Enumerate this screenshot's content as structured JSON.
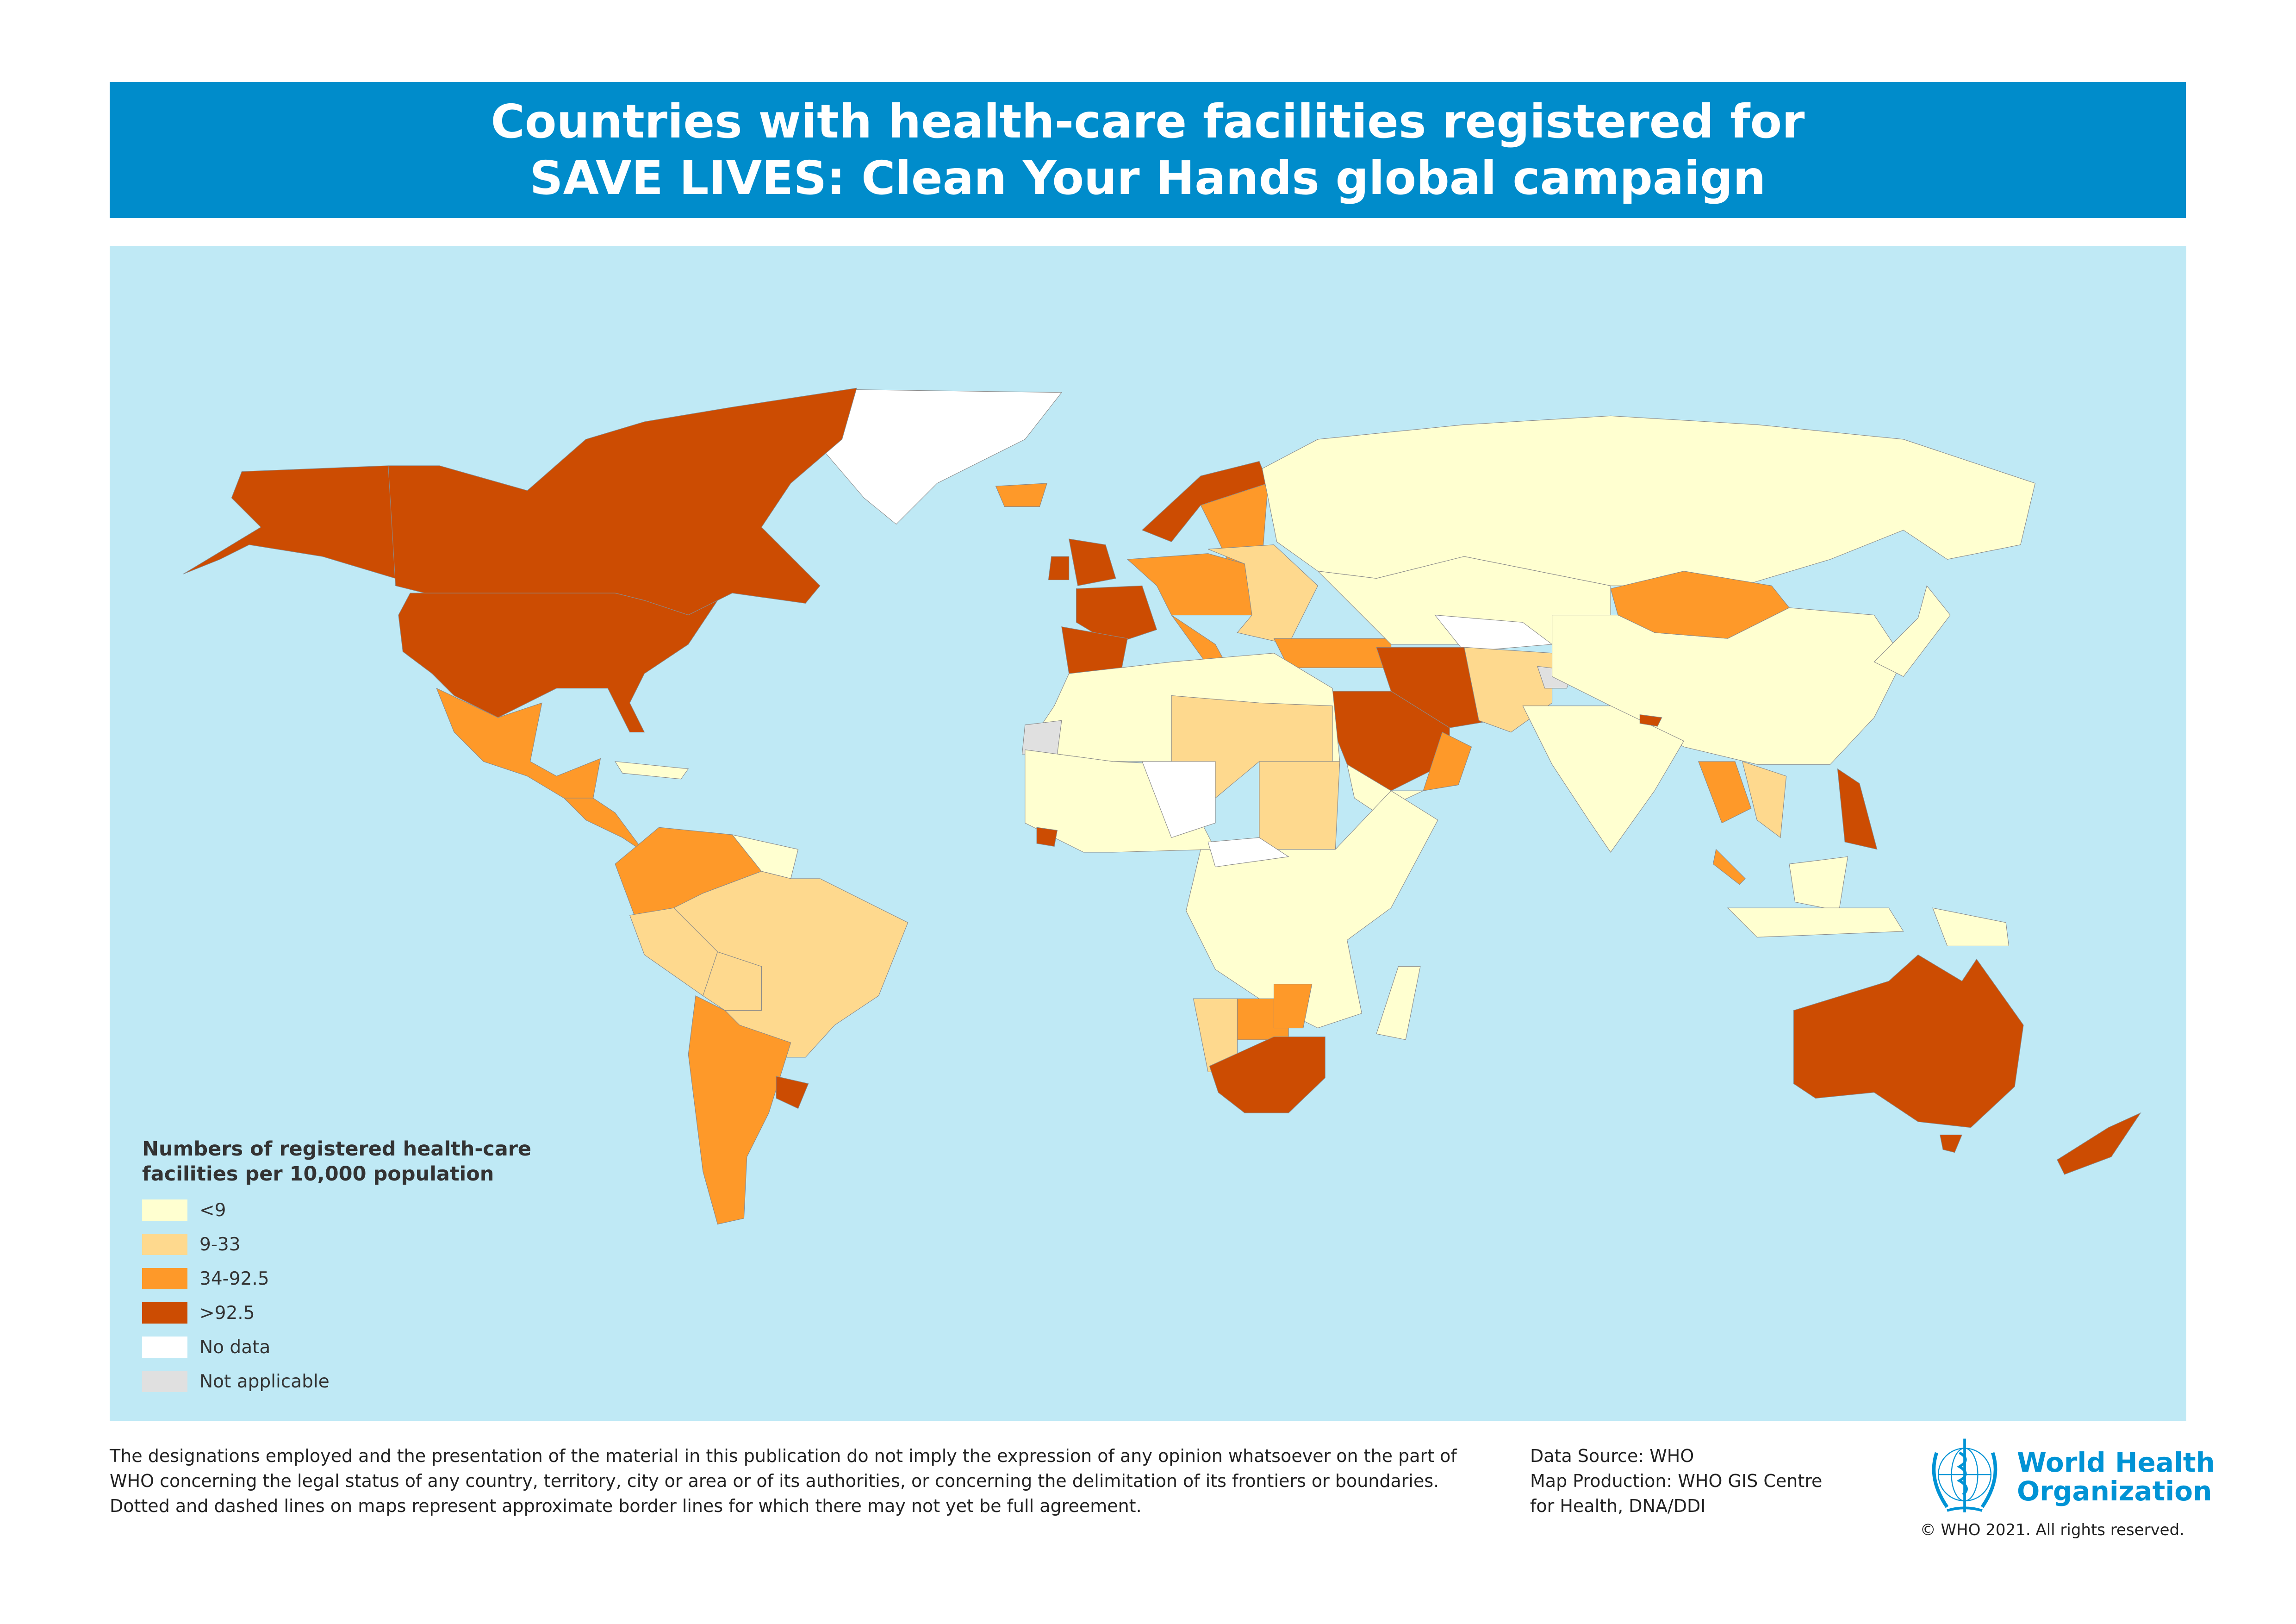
{
  "title": {
    "line1": "Countries with health-care facilities registered for",
    "line2": "SAVE LIVES: Clean Your Hands global campaign"
  },
  "legend": {
    "title_line1": "Numbers of registered health-care",
    "title_line2": "facilities per 10,000 population",
    "items": [
      {
        "label": "<9",
        "color": "#FFFFD0"
      },
      {
        "label": "9-33",
        "color": "#FED98E"
      },
      {
        "label": "34-92.5",
        "color": "#FE9929"
      },
      {
        "label": ">92.5",
        "color": "#CC4C02"
      },
      {
        "label": "No data",
        "color": "#FFFFFF"
      },
      {
        "label": "Not applicable",
        "color": "#E0E0E0"
      }
    ]
  },
  "colors": {
    "ocean": "#BFE9F5",
    "title_bar": "#008CCB",
    "who_blue": "#0093D5"
  },
  "footer": {
    "disclaimer": "The designations employed and the presentation of the material in this publication do not imply the expression of any opinion whatsoever on the part of WHO concerning the legal status of any country, territory, city or area or of its authorities, or concerning the delimitation of its frontiers or boundaries. Dotted and dashed lines on maps represent approximate border lines for which there may not yet be full agreement.",
    "data_source": "Data Source: WHO",
    "map_production_line1": "Map Production: WHO GIS Centre",
    "map_production_line2": "for Health, DNA/DDI",
    "logo_line1": "World Health",
    "logo_line2": "Organization",
    "copyright": "© WHO 2021. All rights reserved."
  }
}
